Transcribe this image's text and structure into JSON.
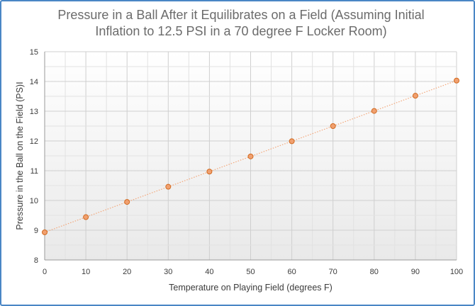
{
  "chart_data": {
    "type": "scatter",
    "title": "Pressure in a Ball  After it Equilibrates on a Field (Assuming Initial\nInflation to 12.5 PSI in a 70 degree F Locker Room)",
    "xlabel": "Temperature on Playing Field (degrees F)",
    "ylabel": "Pressure in the Ball on the Field (PS)I",
    "xlim": [
      0,
      100
    ],
    "ylim": [
      8,
      15
    ],
    "xticks": [
      0,
      10,
      20,
      30,
      40,
      50,
      60,
      70,
      80,
      90,
      100
    ],
    "yticks": [
      8,
      9,
      10,
      11,
      12,
      13,
      14,
      15
    ],
    "grid": true,
    "legend": "none",
    "series": [
      {
        "x": [
          0,
          10,
          20,
          30,
          40,
          50,
          60,
          70,
          80,
          90,
          100
        ],
        "y": [
          8.93,
          9.44,
          9.95,
          10.46,
          10.97,
          11.48,
          11.99,
          12.5,
          13.01,
          13.52,
          14.03
        ],
        "marker_color": "#f0a070",
        "marker_edge": "#d2691e",
        "line_color": "#f3a77a",
        "line_style": "dotted"
      }
    ]
  }
}
